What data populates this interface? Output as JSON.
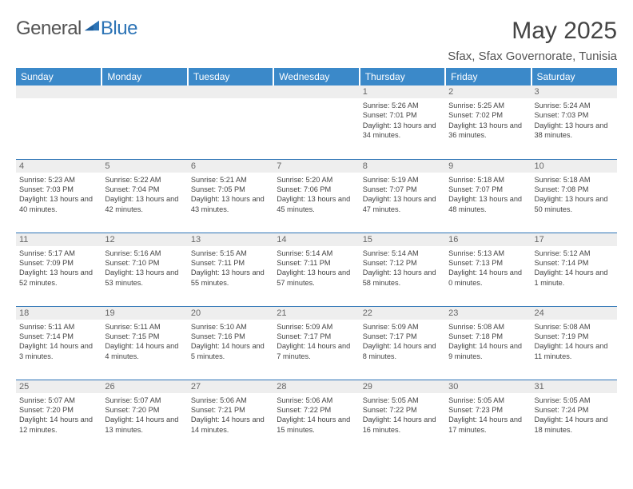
{
  "logo": {
    "text1": "General",
    "text2": "Blue"
  },
  "title": "May 2025",
  "location": "Sfax, Sfax Governorate, Tunisia",
  "colors": {
    "headerBar": "#3b89c9",
    "accentBlue": "#2d74b6",
    "dayNumBg": "#eeeeee",
    "textDark": "#444444",
    "textMuted": "#666666"
  },
  "weekdays": [
    "Sunday",
    "Monday",
    "Tuesday",
    "Wednesday",
    "Thursday",
    "Friday",
    "Saturday"
  ],
  "weeks": [
    [
      {
        "empty": true
      },
      {
        "empty": true
      },
      {
        "empty": true
      },
      {
        "empty": true
      },
      {
        "num": "1",
        "sunrise": "5:26 AM",
        "sunset": "7:01 PM",
        "daylight": "13 hours and 34 minutes."
      },
      {
        "num": "2",
        "sunrise": "5:25 AM",
        "sunset": "7:02 PM",
        "daylight": "13 hours and 36 minutes."
      },
      {
        "num": "3",
        "sunrise": "5:24 AM",
        "sunset": "7:03 PM",
        "daylight": "13 hours and 38 minutes."
      }
    ],
    [
      {
        "num": "4",
        "sunrise": "5:23 AM",
        "sunset": "7:03 PM",
        "daylight": "13 hours and 40 minutes."
      },
      {
        "num": "5",
        "sunrise": "5:22 AM",
        "sunset": "7:04 PM",
        "daylight": "13 hours and 42 minutes."
      },
      {
        "num": "6",
        "sunrise": "5:21 AM",
        "sunset": "7:05 PM",
        "daylight": "13 hours and 43 minutes."
      },
      {
        "num": "7",
        "sunrise": "5:20 AM",
        "sunset": "7:06 PM",
        "daylight": "13 hours and 45 minutes."
      },
      {
        "num": "8",
        "sunrise": "5:19 AM",
        "sunset": "7:07 PM",
        "daylight": "13 hours and 47 minutes."
      },
      {
        "num": "9",
        "sunrise": "5:18 AM",
        "sunset": "7:07 PM",
        "daylight": "13 hours and 48 minutes."
      },
      {
        "num": "10",
        "sunrise": "5:18 AM",
        "sunset": "7:08 PM",
        "daylight": "13 hours and 50 minutes."
      }
    ],
    [
      {
        "num": "11",
        "sunrise": "5:17 AM",
        "sunset": "7:09 PM",
        "daylight": "13 hours and 52 minutes."
      },
      {
        "num": "12",
        "sunrise": "5:16 AM",
        "sunset": "7:10 PM",
        "daylight": "13 hours and 53 minutes."
      },
      {
        "num": "13",
        "sunrise": "5:15 AM",
        "sunset": "7:11 PM",
        "daylight": "13 hours and 55 minutes."
      },
      {
        "num": "14",
        "sunrise": "5:14 AM",
        "sunset": "7:11 PM",
        "daylight": "13 hours and 57 minutes."
      },
      {
        "num": "15",
        "sunrise": "5:14 AM",
        "sunset": "7:12 PM",
        "daylight": "13 hours and 58 minutes."
      },
      {
        "num": "16",
        "sunrise": "5:13 AM",
        "sunset": "7:13 PM",
        "daylight": "14 hours and 0 minutes."
      },
      {
        "num": "17",
        "sunrise": "5:12 AM",
        "sunset": "7:14 PM",
        "daylight": "14 hours and 1 minute."
      }
    ],
    [
      {
        "num": "18",
        "sunrise": "5:11 AM",
        "sunset": "7:14 PM",
        "daylight": "14 hours and 3 minutes."
      },
      {
        "num": "19",
        "sunrise": "5:11 AM",
        "sunset": "7:15 PM",
        "daylight": "14 hours and 4 minutes."
      },
      {
        "num": "20",
        "sunrise": "5:10 AM",
        "sunset": "7:16 PM",
        "daylight": "14 hours and 5 minutes."
      },
      {
        "num": "21",
        "sunrise": "5:09 AM",
        "sunset": "7:17 PM",
        "daylight": "14 hours and 7 minutes."
      },
      {
        "num": "22",
        "sunrise": "5:09 AM",
        "sunset": "7:17 PM",
        "daylight": "14 hours and 8 minutes."
      },
      {
        "num": "23",
        "sunrise": "5:08 AM",
        "sunset": "7:18 PM",
        "daylight": "14 hours and 9 minutes."
      },
      {
        "num": "24",
        "sunrise": "5:08 AM",
        "sunset": "7:19 PM",
        "daylight": "14 hours and 11 minutes."
      }
    ],
    [
      {
        "num": "25",
        "sunrise": "5:07 AM",
        "sunset": "7:20 PM",
        "daylight": "14 hours and 12 minutes."
      },
      {
        "num": "26",
        "sunrise": "5:07 AM",
        "sunset": "7:20 PM",
        "daylight": "14 hours and 13 minutes."
      },
      {
        "num": "27",
        "sunrise": "5:06 AM",
        "sunset": "7:21 PM",
        "daylight": "14 hours and 14 minutes."
      },
      {
        "num": "28",
        "sunrise": "5:06 AM",
        "sunset": "7:22 PM",
        "daylight": "14 hours and 15 minutes."
      },
      {
        "num": "29",
        "sunrise": "5:05 AM",
        "sunset": "7:22 PM",
        "daylight": "14 hours and 16 minutes."
      },
      {
        "num": "30",
        "sunrise": "5:05 AM",
        "sunset": "7:23 PM",
        "daylight": "14 hours and 17 minutes."
      },
      {
        "num": "31",
        "sunrise": "5:05 AM",
        "sunset": "7:24 PM",
        "daylight": "14 hours and 18 minutes."
      }
    ]
  ],
  "labels": {
    "sunrise": "Sunrise: ",
    "sunset": "Sunset: ",
    "daylight": "Daylight: "
  }
}
